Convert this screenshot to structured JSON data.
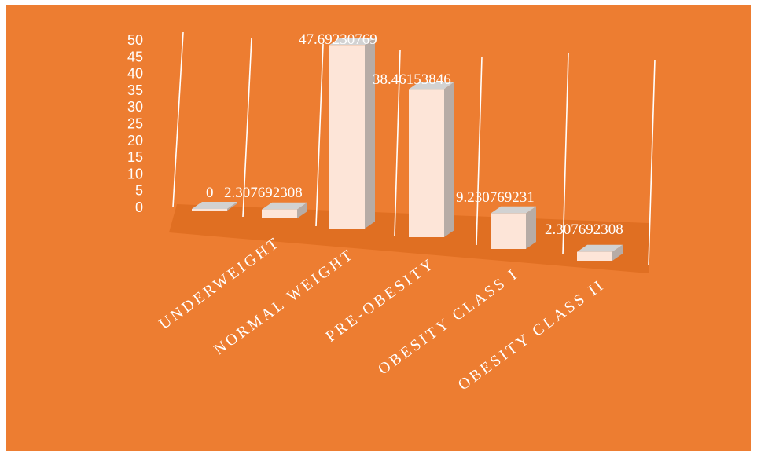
{
  "colors": {
    "background": "#ED7D31",
    "floor": "#E06F22",
    "bar_front": "#FDE5D8",
    "bar_top": "#D2D2D2",
    "bar_side": "#B7ACA6",
    "lines": "#FFFFFF"
  },
  "chart_data": {
    "type": "bar",
    "title": "",
    "xlabel": "",
    "ylabel": "",
    "ylim": [
      0,
      50
    ],
    "yticks": [
      "0",
      "5",
      "10",
      "15",
      "20",
      "25",
      "30",
      "35",
      "40",
      "45",
      "50"
    ],
    "legend": "none",
    "grid": "vertical category gridlines",
    "categories": [
      "UNDERWEIGHT",
      "NORMAL WEIGHT",
      "PRE-OBESITY",
      "OBESITY CLASS I",
      "OBESITY CLASS II"
    ],
    "values": [
      0,
      47.69230769,
      38.46153846,
      9.230769231,
      2.307692308
    ],
    "data_labels": [
      "0",
      "47.69230769",
      "38.46153846",
      "9.230769231",
      "2.307692308"
    ],
    "extra_label": "2.307692308"
  }
}
